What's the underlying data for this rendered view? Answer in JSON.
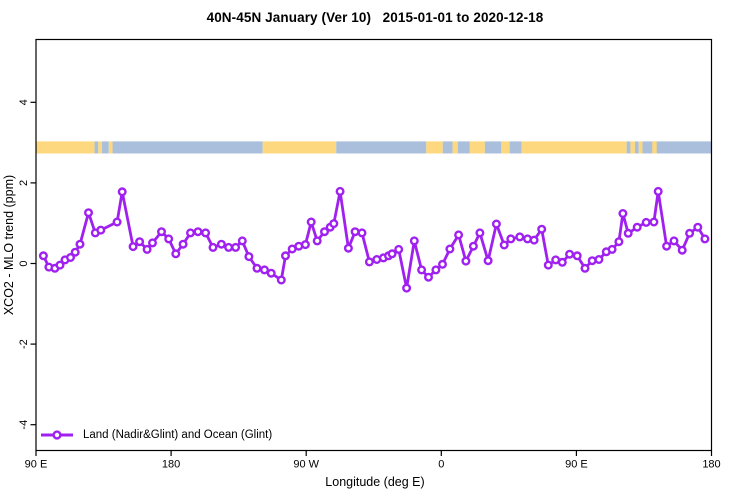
{
  "title": "40N-45N January (Ver 10)   2015-01-01 to 2020-12-18",
  "axes": {
    "x_label": "Longitude (deg E)",
    "y_label": "XCO2 - MLO trend (ppm)",
    "x_ticks": [
      {
        "deg": 90,
        "label": "90 E"
      },
      {
        "deg": 180,
        "label": "180"
      },
      {
        "deg": 270,
        "label": "90 W"
      },
      {
        "deg": 360,
        "label": "0"
      },
      {
        "deg": 450,
        "label": "90 E"
      },
      {
        "deg": 540,
        "label": "180"
      }
    ],
    "y_ticks": [
      "-4",
      "-2",
      "0",
      "2",
      "4"
    ]
  },
  "legend": {
    "label": "Land (Nadir&Glint) and Ocean (Glint)"
  },
  "colors": {
    "series": "#A020F0",
    "land": "#FDD87E",
    "ocean": "#A9BFDB",
    "axis": "#000000",
    "background": "#FFFFFF"
  },
  "surface_band": {
    "band_ppm": [
      2.73,
      3.03
    ],
    "segments": [
      {
        "surface": "land",
        "from": 90,
        "to": 129
      },
      {
        "surface": "ocean",
        "from": 129,
        "to": 131.5
      },
      {
        "surface": "land",
        "from": 131.5,
        "to": 134
      },
      {
        "surface": "ocean",
        "from": 134,
        "to": 138.5
      },
      {
        "surface": "land",
        "from": 138.5,
        "to": 141
      },
      {
        "surface": "ocean",
        "from": 141,
        "to": 241
      },
      {
        "surface": "land",
        "from": 241,
        "to": 290
      },
      {
        "surface": "ocean",
        "from": 290,
        "to": 350
      },
      {
        "surface": "land",
        "from": 350,
        "to": 361
      },
      {
        "surface": "ocean",
        "from": 361,
        "to": 367.5
      },
      {
        "surface": "land",
        "from": 367.5,
        "to": 371
      },
      {
        "surface": "ocean",
        "from": 371,
        "to": 379
      },
      {
        "surface": "land",
        "from": 379,
        "to": 389
      },
      {
        "surface": "ocean",
        "from": 389,
        "to": 400
      },
      {
        "surface": "land",
        "from": 400,
        "to": 405.5
      },
      {
        "surface": "ocean",
        "from": 405.5,
        "to": 413.5
      },
      {
        "surface": "land",
        "from": 413.5,
        "to": 483.5
      },
      {
        "surface": "ocean",
        "from": 483.5,
        "to": 486
      },
      {
        "surface": "land",
        "from": 486,
        "to": 489
      },
      {
        "surface": "ocean",
        "from": 489,
        "to": 491.5
      },
      {
        "surface": "land",
        "from": 491.5,
        "to": 494
      },
      {
        "surface": "ocean",
        "from": 494,
        "to": 540
      },
      {
        "surface": "land",
        "from": 500.5,
        "to": 503.5
      }
    ]
  },
  "chart_data": {
    "type": "line",
    "title": "40N-45N January (Ver 10)   2015-01-01 to 2020-12-18",
    "xlabel": "Longitude (deg E)",
    "ylabel": "XCO2 - MLO trend (ppm)",
    "xlim": [
      90,
      540
    ],
    "ylim": [
      -4.7,
      5.6
    ],
    "grid": false,
    "legend_position": "bottom-left",
    "series": [
      {
        "name": "Land (Nadir&Glint) and Ocean (Glint)",
        "marker": "open-circle",
        "points": [
          [
            94.9,
            0.19
          ],
          [
            98.6,
            -0.09
          ],
          [
            102.6,
            -0.12
          ],
          [
            106.0,
            -0.04
          ],
          [
            109.3,
            0.09
          ],
          [
            113.0,
            0.15
          ],
          [
            116.1,
            0.28
          ],
          [
            119.3,
            0.48
          ],
          [
            125.0,
            1.26
          ],
          [
            129.5,
            0.76
          ],
          [
            133.2,
            0.83
          ],
          [
            144.0,
            1.03
          ],
          [
            147.4,
            1.78
          ],
          [
            154.7,
            0.42
          ],
          [
            159.0,
            0.54
          ],
          [
            164.0,
            0.35
          ],
          [
            167.6,
            0.51
          ],
          [
            173.6,
            0.79
          ],
          [
            178.4,
            0.61
          ],
          [
            183.1,
            0.24
          ],
          [
            188.0,
            0.48
          ],
          [
            192.9,
            0.76
          ],
          [
            197.9,
            0.79
          ],
          [
            203.0,
            0.76
          ],
          [
            207.9,
            0.4
          ],
          [
            213.5,
            0.48
          ],
          [
            218.3,
            0.4
          ],
          [
            223.0,
            0.4
          ],
          [
            227.4,
            0.56
          ],
          [
            231.8,
            0.17
          ],
          [
            237.2,
            -0.12
          ],
          [
            242.2,
            -0.16
          ],
          [
            246.7,
            -0.24
          ],
          [
            253.4,
            -0.41
          ],
          [
            256.2,
            0.19
          ],
          [
            260.7,
            0.36
          ],
          [
            265.1,
            0.43
          ],
          [
            269.5,
            0.47
          ],
          [
            273.3,
            1.03
          ],
          [
            277.3,
            0.56
          ],
          [
            282.2,
            0.79
          ],
          [
            286.0,
            0.9
          ],
          [
            288.4,
            0.99
          ],
          [
            292.6,
            1.79
          ],
          [
            298.1,
            0.38
          ],
          [
            302.6,
            0.79
          ],
          [
            307.2,
            0.76
          ],
          [
            312.1,
            0.04
          ],
          [
            317.0,
            0.1
          ],
          [
            321.4,
            0.14
          ],
          [
            324.8,
            0.19
          ],
          [
            327.2,
            0.24
          ],
          [
            331.6,
            0.35
          ],
          [
            336.9,
            -0.61
          ],
          [
            342.0,
            0.56
          ],
          [
            346.9,
            -0.16
          ],
          [
            351.5,
            -0.34
          ],
          [
            356.4,
            -0.16
          ],
          [
            360.8,
            -0.02
          ],
          [
            365.7,
            0.36
          ],
          [
            371.5,
            0.71
          ],
          [
            376.4,
            0.06
          ],
          [
            381.4,
            0.43
          ],
          [
            385.7,
            0.76
          ],
          [
            391.2,
            0.07
          ],
          [
            396.7,
            0.98
          ],
          [
            401.9,
            0.46
          ],
          [
            406.3,
            0.61
          ],
          [
            412.3,
            0.66
          ],
          [
            417.4,
            0.61
          ],
          [
            421.8,
            0.58
          ],
          [
            426.9,
            0.85
          ],
          [
            431.3,
            -0.04
          ],
          [
            436.2,
            0.09
          ],
          [
            440.6,
            0.03
          ],
          [
            445.5,
            0.23
          ],
          [
            450.5,
            0.19
          ],
          [
            455.7,
            -0.12
          ],
          [
            460.5,
            0.07
          ],
          [
            465.0,
            0.1
          ],
          [
            469.9,
            0.29
          ],
          [
            473.8,
            0.35
          ],
          [
            478.3,
            0.54
          ],
          [
            481.0,
            1.24
          ],
          [
            484.5,
            0.75
          ],
          [
            490.5,
            0.9
          ],
          [
            496.5,
            1.02
          ],
          [
            501.6,
            1.03
          ],
          [
            504.5,
            1.79
          ],
          [
            510.1,
            0.43
          ],
          [
            515.0,
            0.56
          ],
          [
            520.5,
            0.33
          ],
          [
            525.4,
            0.75
          ],
          [
            530.9,
            0.9
          ],
          [
            535.6,
            0.61
          ]
        ]
      }
    ]
  }
}
